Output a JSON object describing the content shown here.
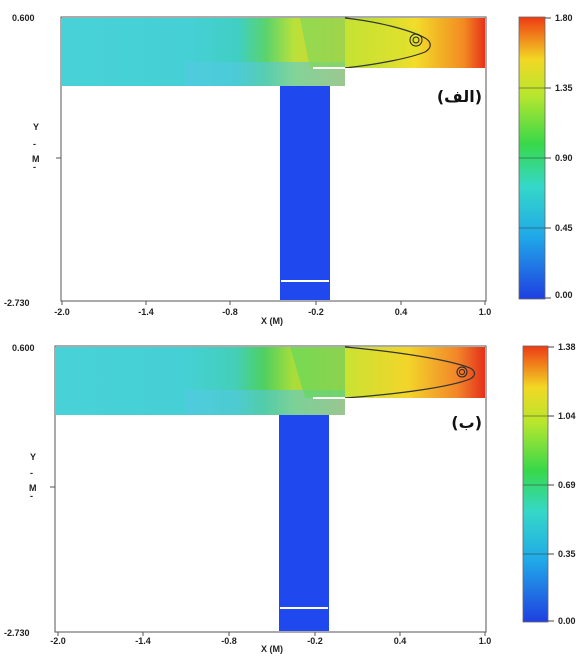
{
  "panels": [
    {
      "id": "a",
      "label": "(الف)",
      "y_top": "0.600",
      "y_bottom": "-2.730",
      "y_axis_label": "Y",
      "y_axis_unit": "M",
      "x_ticks": [
        "-2.0",
        "-1.4",
        "-0.8",
        "-0.2",
        "0.4",
        "1.0"
      ],
      "x_axis_label": "X (M)",
      "colorbar_ticks": [
        "1.80",
        "1.35",
        "0.90",
        "0.45",
        "0.00"
      ]
    },
    {
      "id": "b",
      "label": "(ب)",
      "y_top": "0.600",
      "y_bottom": "-2.730",
      "y_axis_label": "Y",
      "y_axis_unit": "M",
      "x_ticks": [
        "-2.0",
        "-1.4",
        "-0.8",
        "-0.2",
        "0.4",
        "1.0"
      ],
      "x_axis_label": "X (M)",
      "colorbar_ticks": [
        "1.38",
        "1.04",
        "0.69",
        "0.35",
        "0.00"
      ]
    }
  ],
  "colors": {
    "teal": "#3fd6d6",
    "blue": "#1f4fe6",
    "green": "#3fdd5a",
    "yellow": "#f2e030",
    "orange": "#f58a1e",
    "red": "#e8301a"
  }
}
